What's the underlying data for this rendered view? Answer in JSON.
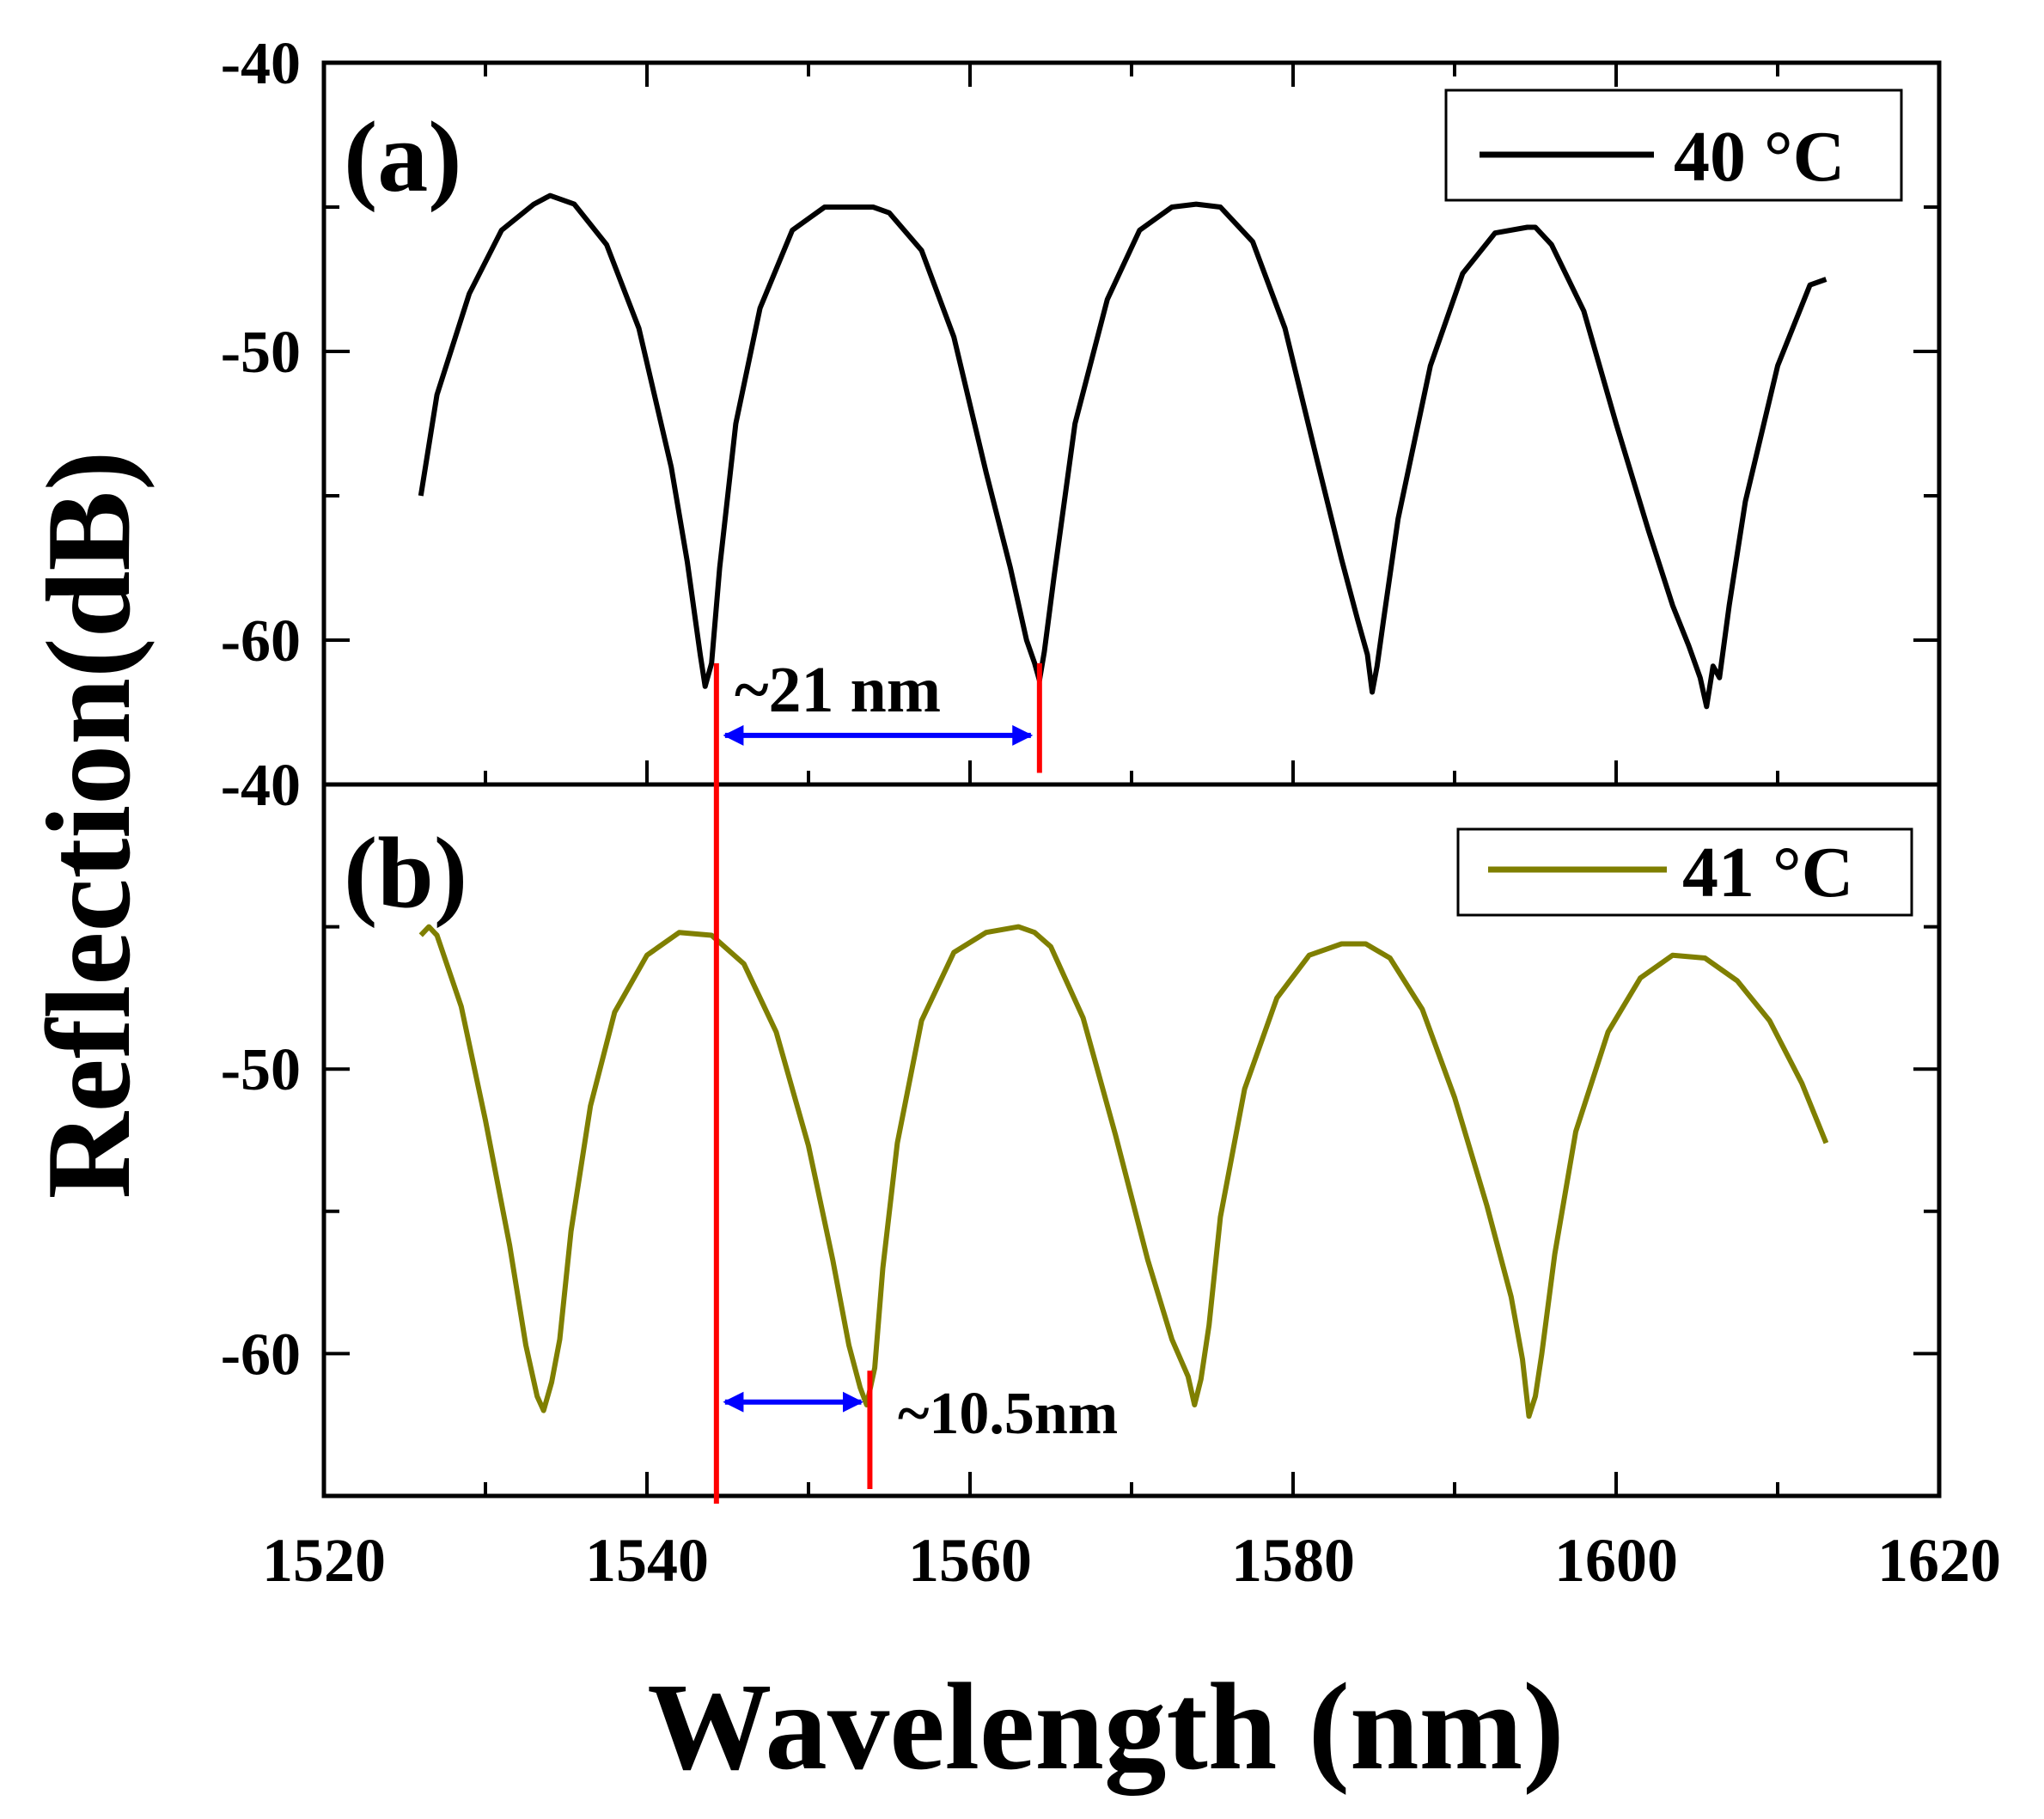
{
  "chart_data": [
    {
      "panel_label": "(a)",
      "type": "line",
      "legend": "40 °C",
      "color": "#000000",
      "xlim": [
        1520,
        1620
      ],
      "ylim": [
        -65,
        -40
      ],
      "yticks": [
        -40,
        -50,
        -60
      ],
      "series": [
        {
          "name": "40 °C",
          "x": [
            1526,
            1527,
            1529,
            1531,
            1533,
            1534,
            1535.5,
            1537.5,
            1539.5,
            1541.5,
            1542.5,
            1543.3,
            1543.6,
            1544.0,
            1544.5,
            1545.5,
            1547,
            1549,
            1551,
            1553,
            1554,
            1555,
            1557,
            1559,
            1561,
            1562.5,
            1563.5,
            1564,
            1564.3,
            1564.6,
            1565.2,
            1566.5,
            1568.5,
            1570.5,
            1572.5,
            1574,
            1575.5,
            1577.5,
            1579.5,
            1581.5,
            1583,
            1584,
            1584.6,
            1584.9,
            1585.2,
            1585.6,
            1586.5,
            1588.5,
            1590.5,
            1592.5,
            1594.5,
            1595,
            1596,
            1598,
            1600,
            1602,
            1603.5,
            1604.5,
            1605.2,
            1605.6,
            1606.0,
            1606.4,
            1607,
            1608,
            1610,
            1612,
            1613
          ],
          "y": [
            -55,
            -51.5,
            -48,
            -45.8,
            -44.9,
            -44.6,
            -44.9,
            -46.3,
            -49.2,
            -54,
            -57.3,
            -60.5,
            -61.6,
            -60.8,
            -57.5,
            -52.5,
            -48.5,
            -45.8,
            -45.0,
            -45.0,
            -45.0,
            -45.2,
            -46.5,
            -49.5,
            -54.2,
            -57.5,
            -60,
            -60.8,
            -61.4,
            -60.4,
            -57.8,
            -52.5,
            -48.2,
            -45.8,
            -45.0,
            -44.9,
            -45.0,
            -46.2,
            -49.2,
            -53.8,
            -57.2,
            -59.3,
            -60.5,
            -61.8,
            -60.9,
            -59.3,
            -55.8,
            -50.5,
            -47.3,
            -45.9,
            -45.7,
            -45.7,
            -46.3,
            -48.6,
            -52.5,
            -56.2,
            -58.8,
            -60.2,
            -61.3,
            -62.3,
            -60.9,
            -61.3,
            -58.8,
            -55.2,
            -50.5,
            -47.7,
            -47.5
          ]
        }
      ],
      "annotation": "~21 nm"
    },
    {
      "panel_label": "(b)",
      "type": "line",
      "legend": "41 °C",
      "color": "#7f7f00",
      "xlim": [
        1520,
        1620
      ],
      "ylim": [
        -65,
        -40
      ],
      "yticks": [
        -40,
        -50,
        -60
      ],
      "series": [
        {
          "name": "41 °C",
          "x": [
            1526,
            1526.5,
            1527,
            1528.5,
            1530,
            1531.5,
            1532.5,
            1533.2,
            1533.6,
            1534.1,
            1534.6,
            1535.3,
            1536.5,
            1538,
            1540,
            1542,
            1544,
            1546,
            1548,
            1550,
            1551.5,
            1552.5,
            1553.2,
            1553.6,
            1554.1,
            1554.6,
            1555.5,
            1557,
            1559,
            1561,
            1563,
            1564,
            1565,
            1567,
            1569,
            1571,
            1572.5,
            1573.5,
            1573.9,
            1574.3,
            1574.8,
            1575.5,
            1577,
            1579,
            1581,
            1583,
            1584.5,
            1586,
            1588,
            1590,
            1592,
            1593.5,
            1594.2,
            1594.6,
            1595.0,
            1595.4,
            1596.2,
            1597.5,
            1599.5,
            1601.5,
            1603.5,
            1605.5,
            1607.5,
            1609.5,
            1611.5,
            1613
          ],
          "y": [
            -45.3,
            -45.0,
            -45.3,
            -47.8,
            -51.8,
            -56.2,
            -59.7,
            -61.5,
            -62.0,
            -61.0,
            -59.5,
            -55.7,
            -51.3,
            -48.0,
            -46.0,
            -45.2,
            -45.3,
            -46.3,
            -48.7,
            -52.7,
            -56.7,
            -59.7,
            -61.2,
            -61.8,
            -60.5,
            -57.0,
            -52.6,
            -48.3,
            -45.9,
            -45.2,
            -45.0,
            -45.2,
            -45.7,
            -48.2,
            -52.3,
            -56.7,
            -59.5,
            -60.8,
            -61.8,
            -60.9,
            -59.0,
            -55.2,
            -50.7,
            -47.5,
            -46.0,
            -45.6,
            -45.6,
            -46.1,
            -47.9,
            -51.0,
            -54.8,
            -58.0,
            -60.2,
            -62.2,
            -61.5,
            -60.0,
            -56.5,
            -52.2,
            -48.7,
            -46.8,
            -46.0,
            -46.1,
            -46.9,
            -48.3,
            -50.5,
            -52.6
          ]
        }
      ],
      "annotation": "~10.5nm"
    }
  ],
  "axes": {
    "xlabel": "Wavelength (nm)",
    "ylabel": "Reflection(dB)",
    "xticks": [
      1520,
      1540,
      1560,
      1580,
      1600,
      1620
    ]
  },
  "markers": {
    "line_color": "#ff0000",
    "arrow_color": "#0000ff",
    "red_line_long_x": 1544.3,
    "red_line_a_x": 1564.3,
    "red_line_b_x": 1553.8,
    "arrow_a": {
      "from": 1544.3,
      "to": 1564.3,
      "y": -63.3
    },
    "arrow_b": {
      "from": 1544.3,
      "to": 1553.8,
      "y": -61.7
    }
  }
}
